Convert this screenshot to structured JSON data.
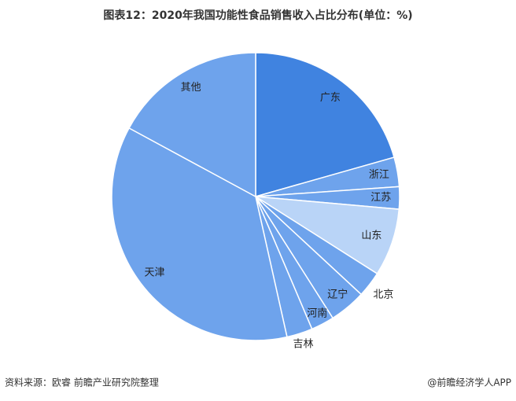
{
  "chart_data": {
    "type": "pie",
    "title": "图表12：2020年我国功能性食品销售收入占比分布(单位：%)",
    "categories": [
      "广东",
      "浙江",
      "江苏",
      "山东",
      "北京",
      "辽宁",
      "河南",
      "吉林",
      "天津",
      "其他"
    ],
    "values": [
      20.6,
      3.3,
      2.5,
      7.6,
      2.9,
      4.1,
      2.6,
      2.9,
      36.4,
      17.1
    ],
    "colors": [
      "#4083e0",
      "#6ea3ec",
      "#6ea3ec",
      "#b9d4f7",
      "#6ea3ec",
      "#6ea3ec",
      "#6ea3ec",
      "#6ea3ec",
      "#6ea3ec",
      "#6ea3ec"
    ],
    "source": "资料来源：欧睿 前瞻产业研究院整理",
    "credit": "@前瞻经济学人APP"
  }
}
